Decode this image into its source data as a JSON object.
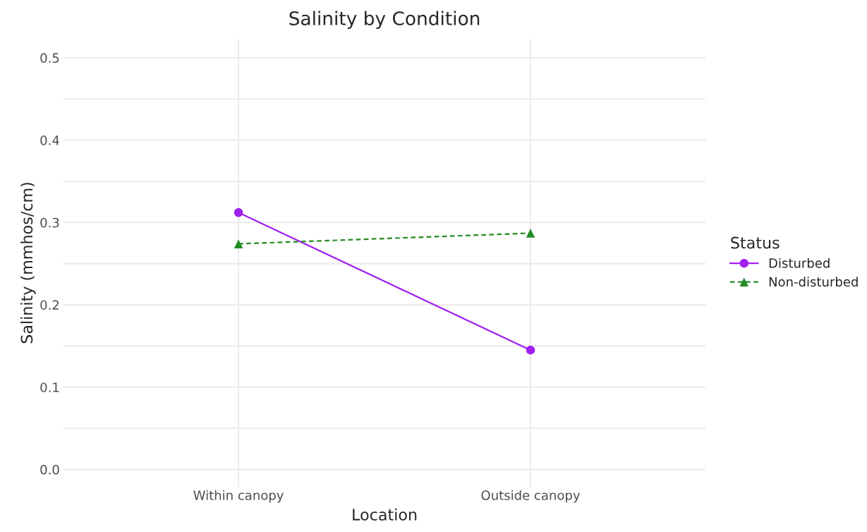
{
  "chart_data": {
    "type": "line",
    "title": "Salinity by Condition",
    "xlabel": "Location",
    "ylabel": "Salinity (mmhos/cm)",
    "legend_title": "Status",
    "categories": [
      "Within canopy",
      "Outside canopy"
    ],
    "series": [
      {
        "name": "Disturbed",
        "color": "#a020f0",
        "values": [
          0.312,
          0.145
        ],
        "marker": "circle",
        "line_style": "solid"
      },
      {
        "name": "Non-disturbed",
        "color": "#228b22",
        "values": [
          0.274,
          0.287
        ],
        "marker": "triangle",
        "line_style": "dashed"
      }
    ],
    "ylim": [
      -0.021,
      0.523
    ],
    "yticks": [
      {
        "value": 0,
        "label": "0.0"
      },
      {
        "value": 0.05,
        "label": null
      },
      0.1,
      {
        "value": 0.15,
        "label": null
      },
      0.2,
      {
        "value": 0.25,
        "label": null
      },
      0.3,
      {
        "value": 0.35,
        "label": null
      },
      0.4,
      {
        "value": 0.45,
        "label": null
      },
      0.5
    ],
    "grid": true,
    "legend": "right"
  }
}
